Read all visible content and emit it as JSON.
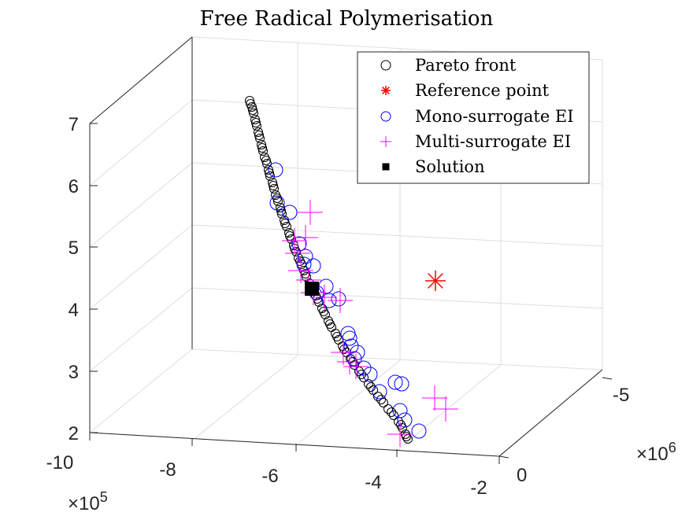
{
  "chart_data": {
    "type": "scatter",
    "title": "Free Radical Polymerisation",
    "axes": {
      "x": {
        "ticks": [
          "-10",
          "-8",
          "-6",
          "-4",
          "-2"
        ],
        "exponent_base": "×10",
        "exponent_power": "5"
      },
      "y": {
        "ticks": [
          "0",
          "-5"
        ],
        "exponent_base": "×10",
        "exponent_power": "6"
      },
      "z": {
        "ticks": [
          "2",
          "3",
          "4",
          "5",
          "6",
          "7"
        ],
        "ylim": [
          2,
          7
        ]
      }
    },
    "legend": {
      "placement": "top-right",
      "entries": [
        {
          "label": "Pareto front",
          "marker": "circle",
          "color": "#000000"
        },
        {
          "label": "Reference point",
          "marker": "asterisk",
          "color": "#ff0000"
        },
        {
          "label": "Mono-surrogate EI",
          "marker": "circle",
          "color": "#0000ff"
        },
        {
          "label": "Multi-surrogate EI",
          "marker": "plus",
          "color": "#ff00ff"
        },
        {
          "label": "Solution",
          "marker": "square",
          "color": "#000000"
        }
      ]
    },
    "series": [
      {
        "name": "Pareto front",
        "points": [
          [
            317,
            128
          ],
          [
            320,
            136
          ],
          [
            322,
            144
          ],
          [
            324,
            152
          ],
          [
            326,
            160
          ],
          [
            328,
            168
          ],
          [
            330,
            176
          ],
          [
            332,
            184
          ],
          [
            334,
            192
          ],
          [
            336,
            200
          ],
          [
            339,
            208
          ],
          [
            341,
            216
          ],
          [
            343,
            224
          ],
          [
            346,
            232
          ],
          [
            348,
            240
          ],
          [
            350,
            248
          ],
          [
            353,
            256
          ],
          [
            356,
            264
          ],
          [
            358,
            272
          ],
          [
            361,
            280
          ],
          [
            364,
            288
          ],
          [
            367,
            296
          ],
          [
            370,
            304
          ],
          [
            373,
            312
          ],
          [
            376,
            320
          ],
          [
            379,
            328
          ],
          [
            383,
            336
          ],
          [
            386,
            344
          ],
          [
            389,
            352
          ],
          [
            393,
            360
          ],
          [
            397,
            368
          ],
          [
            401,
            376
          ],
          [
            405,
            384
          ],
          [
            409,
            392
          ],
          [
            413,
            400
          ],
          [
            417,
            408
          ],
          [
            421,
            416
          ],
          [
            426,
            424
          ],
          [
            430,
            432
          ],
          [
            435,
            440
          ],
          [
            440,
            448
          ],
          [
            445,
            456
          ],
          [
            450,
            464
          ],
          [
            456,
            472
          ],
          [
            462,
            480
          ],
          [
            468,
            488
          ],
          [
            474,
            496
          ],
          [
            480,
            504
          ],
          [
            487,
            512
          ],
          [
            493,
            520
          ],
          [
            500,
            528
          ],
          [
            506,
            536
          ],
          [
            511,
            544
          ],
          [
            515,
            552
          ],
          [
            518,
            558
          ],
          [
            318,
            132
          ],
          [
            321,
            140
          ],
          [
            325,
            156
          ],
          [
            329,
            172
          ],
          [
            333,
            188
          ],
          [
            338,
            204
          ],
          [
            342,
            220
          ],
          [
            347,
            236
          ],
          [
            352,
            252
          ],
          [
            357,
            268
          ],
          [
            362,
            284
          ],
          [
            368,
            300
          ],
          [
            374,
            316
          ],
          [
            381,
            332
          ],
          [
            388,
            348
          ],
          [
            395,
            364
          ],
          [
            403,
            380
          ],
          [
            411,
            396
          ],
          [
            419,
            412
          ],
          [
            428,
            428
          ],
          [
            437,
            444
          ],
          [
            448,
            460
          ],
          [
            459,
            476
          ],
          [
            471,
            492
          ],
          [
            484,
            508
          ],
          [
            497,
            524
          ],
          [
            509,
            540
          ],
          [
            516,
            555
          ]
        ]
      },
      {
        "name": "Reference point",
        "points": [
          [
            553,
            357
          ]
        ]
      },
      {
        "name": "Mono-surrogate EI",
        "points": [
          [
            350,
            216
          ],
          [
            352,
            258
          ],
          [
            368,
            270
          ],
          [
            380,
            310
          ],
          [
            386,
            336
          ],
          [
            398,
            338
          ],
          [
            402,
            372
          ],
          [
            414,
            364
          ],
          [
            418,
            382
          ],
          [
            430,
            380
          ],
          [
            442,
            424
          ],
          [
            446,
            440
          ],
          [
            450,
            456
          ],
          [
            454,
            448
          ],
          [
            462,
            468
          ],
          [
            470,
            476
          ],
          [
            482,
            498
          ],
          [
            502,
            486
          ],
          [
            510,
            488
          ],
          [
            508,
            522
          ],
          [
            514,
            534
          ],
          [
            532,
            548
          ],
          [
            388,
            326
          ],
          [
            444,
            430
          ]
        ]
      },
      {
        "name": "Multi-surrogate EI",
        "points": [
          [
            394,
            270
          ],
          [
            388,
            302
          ],
          [
            378,
            322
          ],
          [
            382,
            344
          ],
          [
            392,
            356
          ],
          [
            398,
            372
          ],
          [
            412,
            378
          ],
          [
            432,
            382
          ],
          [
            436,
            448
          ],
          [
            444,
            460
          ],
          [
            452,
            466
          ],
          [
            552,
            506
          ],
          [
            566,
            520
          ],
          [
            508,
            552
          ],
          [
            374,
            306
          ]
        ]
      },
      {
        "name": "Solution",
        "points": [
          [
            396,
            367
          ]
        ]
      }
    ]
  }
}
